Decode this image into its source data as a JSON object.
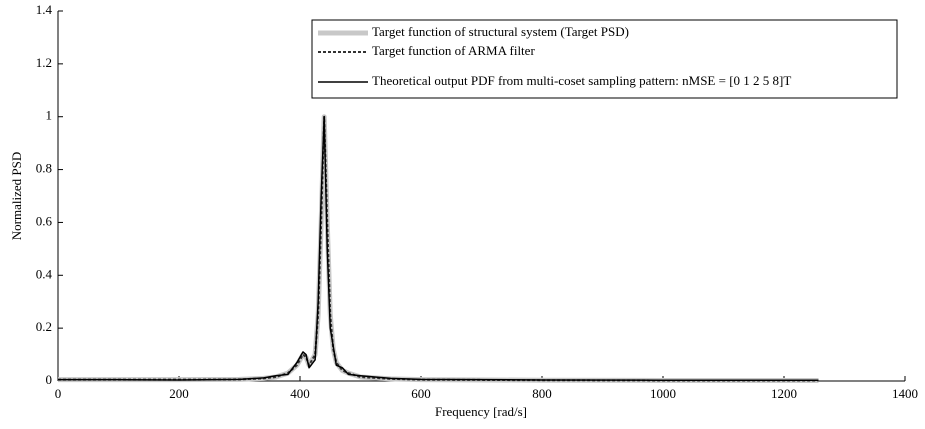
{
  "chart_data": {
    "type": "line",
    "x_label": "Frequency [rad/s]",
    "y_label": "Normalized PSD",
    "x": [
      0,
      100,
      200,
      300,
      340,
      360,
      380,
      395,
      405,
      410,
      415,
      425,
      430,
      435,
      440,
      445,
      450,
      455,
      460,
      470,
      480,
      500,
      550,
      600,
      800,
      1000,
      1257
    ],
    "series": [
      {
        "name": "Target function of structural system (Target PSD)",
        "color": "#c8c8c8",
        "width": 5,
        "dash": "none",
        "values": [
          0.005,
          0.005,
          0.005,
          0.006,
          0.01,
          0.015,
          0.03,
          0.06,
          0.1,
          0.09,
          0.06,
          0.1,
          0.25,
          0.6,
          1.0,
          0.6,
          0.25,
          0.12,
          0.07,
          0.04,
          0.03,
          0.015,
          0.008,
          0.005,
          0.003,
          0.002,
          0.002
        ]
      },
      {
        "name": "Target function of ARMA filter",
        "color": "#333333",
        "width": 2,
        "dash": "3,2",
        "values": [
          0.005,
          0.005,
          0.005,
          0.006,
          0.01,
          0.015,
          0.03,
          0.06,
          0.1,
          0.09,
          0.06,
          0.1,
          0.25,
          0.6,
          1.0,
          0.6,
          0.25,
          0.12,
          0.07,
          0.04,
          0.03,
          0.015,
          0.008,
          0.005,
          0.003,
          0.002,
          0.002
        ]
      },
      {
        "name": "Theoretical output PDF from multi-coset sampling pattern: nMSE = [0 1 2 5 8]T",
        "color": "#000000",
        "width": 1.5,
        "dash": "none",
        "values": [
          0.005,
          0.005,
          0.004,
          0.006,
          0.012,
          0.02,
          0.025,
          0.07,
          0.11,
          0.1,
          0.05,
          0.08,
          0.3,
          0.7,
          1.0,
          0.5,
          0.2,
          0.13,
          0.06,
          0.05,
          0.025,
          0.02,
          0.01,
          0.006,
          0.004,
          0.003,
          0.003
        ]
      }
    ],
    "xlim": [
      0,
      1400
    ],
    "xticks": [
      0,
      200,
      400,
      600,
      800,
      1000,
      1200,
      1400
    ],
    "ylim": [
      0,
      1.4
    ],
    "yticks": [
      0,
      0.2,
      0.4,
      0.6,
      0.8,
      1,
      1.2,
      1.4
    ],
    "grid": false,
    "legend": "upper right"
  }
}
